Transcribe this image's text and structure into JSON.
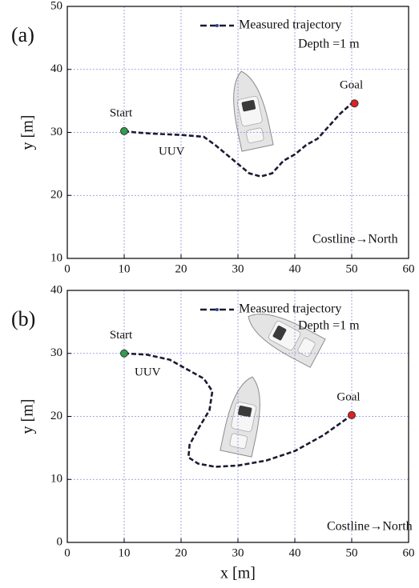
{
  "chart_data": [
    {
      "type": "line",
      "label": "(a)",
      "y_label": "y [m]",
      "xlim": [
        0,
        60
      ],
      "xticks": [
        0,
        10,
        20,
        30,
        40,
        50,
        60
      ],
      "ylim": [
        10,
        50
      ],
      "yticks": [
        10,
        20,
        30,
        40,
        50
      ],
      "grid": true,
      "legend_position": "top",
      "series": [
        {
          "name": "Measured trajectory",
          "color": "#1b1b33",
          "x": [
            10,
            12,
            15,
            20,
            24,
            26,
            28,
            30,
            32,
            34,
            36,
            38,
            40,
            42,
            44,
            46,
            48,
            50
          ],
          "values": [
            30.2,
            30,
            29.8,
            29.6,
            29.3,
            28,
            26.5,
            25,
            23.5,
            23,
            23.5,
            25.5,
            26.5,
            28,
            29,
            31,
            33,
            34.6
          ]
        }
      ],
      "markers": [
        {
          "label": "Start",
          "x": 10,
          "y": 30.2,
          "color": "#2e9e4f"
        },
        {
          "label": "Goal",
          "x": 50.5,
          "y": 34.6,
          "color": "#e02020"
        }
      ],
      "annotations": [
        "UUV",
        "Depth =1 m",
        "Costline→North"
      ]
    },
    {
      "type": "line",
      "label": "(b)",
      "x_label": "x [m]",
      "y_label": "y [m]",
      "xlim": [
        0,
        60
      ],
      "xticks": [
        0,
        10,
        20,
        30,
        40,
        50,
        60
      ],
      "ylim": [
        0,
        40
      ],
      "yticks": [
        0,
        10,
        20,
        30,
        40
      ],
      "grid": true,
      "legend_position": "top",
      "series": [
        {
          "name": "Measured trajectory",
          "color": "#1b1b33",
          "x": [
            10,
            14,
            18,
            21,
            24,
            25.5,
            25,
            23,
            21.5,
            21.3,
            23,
            26,
            30,
            35,
            40,
            45,
            50
          ],
          "values": [
            30,
            29.8,
            29,
            27.5,
            26,
            24,
            21,
            18,
            15.5,
            13.5,
            12.5,
            12,
            12.2,
            13,
            14.5,
            17,
            20.2
          ]
        }
      ],
      "markers": [
        {
          "label": "Start",
          "x": 10,
          "y": 30,
          "color": "#2e9e4f"
        },
        {
          "label": "Goal",
          "x": 50,
          "y": 20.2,
          "color": "#e02020"
        }
      ],
      "annotations": [
        "UUV",
        "Depth =1 m",
        "Costline→North"
      ]
    }
  ]
}
